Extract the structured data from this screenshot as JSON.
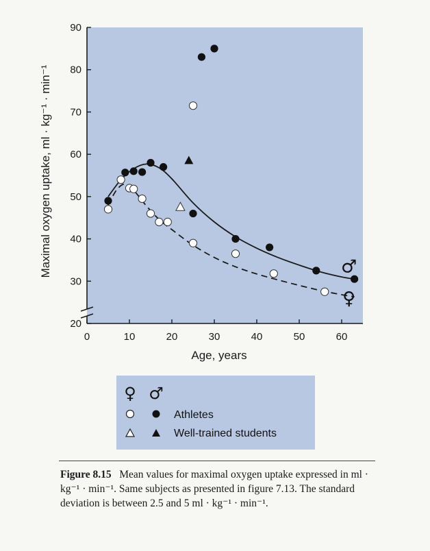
{
  "chart_data": {
    "type": "scatter",
    "ylabel": "Maximal oxygen uptake, ml · kg⁻¹ · min⁻¹",
    "xlabel": "Age, years",
    "xlim": [
      0,
      65
    ],
    "ylim": [
      20,
      90
    ],
    "x_ticks": [
      "0",
      "10",
      "20",
      "30",
      "40",
      "50",
      "60"
    ],
    "y_ticks": [
      "20",
      "30",
      "40",
      "50",
      "60",
      "70",
      "80",
      "90"
    ],
    "axis_break": "y-axis break near 22",
    "grid": false,
    "series": [
      {
        "name": "Athletes",
        "group": "male",
        "marker": "filled-circle",
        "points": [
          {
            "x": 5,
            "y": 49
          },
          {
            "x": 9,
            "y": 55.7
          },
          {
            "x": 11,
            "y": 56
          },
          {
            "x": 13,
            "y": 55.8
          },
          {
            "x": 15,
            "y": 58
          },
          {
            "x": 18,
            "y": 57
          },
          {
            "x": 25,
            "y": 46
          },
          {
            "x": 27,
            "y": 83
          },
          {
            "x": 30,
            "y": 85
          },
          {
            "x": 35,
            "y": 40
          },
          {
            "x": 43,
            "y": 38
          },
          {
            "x": 54,
            "y": 32.5
          },
          {
            "x": 63,
            "y": 30.5
          }
        ]
      },
      {
        "name": "Athletes",
        "group": "female",
        "marker": "open-circle",
        "points": [
          {
            "x": 5,
            "y": 47
          },
          {
            "x": 8,
            "y": 54
          },
          {
            "x": 10,
            "y": 52
          },
          {
            "x": 11,
            "y": 51.8
          },
          {
            "x": 13,
            "y": 49.5
          },
          {
            "x": 15,
            "y": 46
          },
          {
            "x": 17,
            "y": 44
          },
          {
            "x": 19,
            "y": 44
          },
          {
            "x": 25,
            "y": 71.5
          },
          {
            "x": 25,
            "y": 39
          },
          {
            "x": 35,
            "y": 36.5
          },
          {
            "x": 44,
            "y": 31.8
          },
          {
            "x": 56,
            "y": 27.5
          }
        ]
      },
      {
        "name": "Well-trained students",
        "group": "male",
        "marker": "filled-triangle",
        "points": [
          {
            "x": 24,
            "y": 58.5
          }
        ]
      },
      {
        "name": "Well-trained students",
        "group": "female",
        "marker": "open-triangle",
        "points": [
          {
            "x": 22,
            "y": 47.5
          }
        ]
      }
    ],
    "curves": [
      {
        "group": "male",
        "style": "solid",
        "points": [
          {
            "x": 5,
            "y": 50
          },
          {
            "x": 8,
            "y": 54
          },
          {
            "x": 11,
            "y": 56.6
          },
          {
            "x": 14,
            "y": 57.7
          },
          {
            "x": 17,
            "y": 56.8
          },
          {
            "x": 20,
            "y": 54.2
          },
          {
            "x": 25,
            "y": 48.5
          },
          {
            "x": 30,
            "y": 44
          },
          {
            "x": 35,
            "y": 40.5
          },
          {
            "x": 40,
            "y": 37.8
          },
          {
            "x": 45,
            "y": 35.6
          },
          {
            "x": 50,
            "y": 33.8
          },
          {
            "x": 55,
            "y": 32.2
          },
          {
            "x": 60,
            "y": 31
          },
          {
            "x": 63,
            "y": 30.5
          }
        ]
      },
      {
        "group": "female",
        "style": "dashed",
        "points": [
          {
            "x": 5,
            "y": 48
          },
          {
            "x": 7,
            "y": 51.6
          },
          {
            "x": 9,
            "y": 53
          },
          {
            "x": 11,
            "y": 51.5
          },
          {
            "x": 14,
            "y": 47.8
          },
          {
            "x": 17,
            "y": 44.6
          },
          {
            "x": 20,
            "y": 42.2
          },
          {
            "x": 25,
            "y": 38.5
          },
          {
            "x": 30,
            "y": 35.6
          },
          {
            "x": 35,
            "y": 33.4
          },
          {
            "x": 40,
            "y": 31.7
          },
          {
            "x": 45,
            "y": 30.3
          },
          {
            "x": 50,
            "y": 29
          },
          {
            "x": 55,
            "y": 27.8
          },
          {
            "x": 60,
            "y": 26.8
          },
          {
            "x": 63,
            "y": 26.3
          }
        ]
      }
    ],
    "end_symbols": [
      {
        "group": "male",
        "symbol": "♂",
        "x": 63,
        "y": 33.5
      },
      {
        "group": "female",
        "symbol": "♀",
        "x": 63,
        "y": 26
      }
    ],
    "legend": {
      "placement": "below",
      "header_symbols": [
        "♀",
        "♂"
      ],
      "entries": [
        {
          "female_marker": "open-circle",
          "male_marker": "filled-circle",
          "label": "Athletes"
        },
        {
          "female_marker": "open-triangle",
          "male_marker": "filled-triangle",
          "label": "Well-trained students"
        }
      ]
    },
    "colors": {
      "plot_background": "#b8c8e2",
      "male_marker": "#111111",
      "female_marker_fill": "#ffffff",
      "curve": "#1a1a1a"
    }
  },
  "caption": {
    "label": "Figure 8.15",
    "text": "Mean values for maximal oxygen uptake expressed in ml · kg⁻¹ · min⁻¹. Same subjects as presented in figure 7.13. The standard deviation is between 2.5 and 5 ml · kg⁻¹ · min⁻¹."
  }
}
